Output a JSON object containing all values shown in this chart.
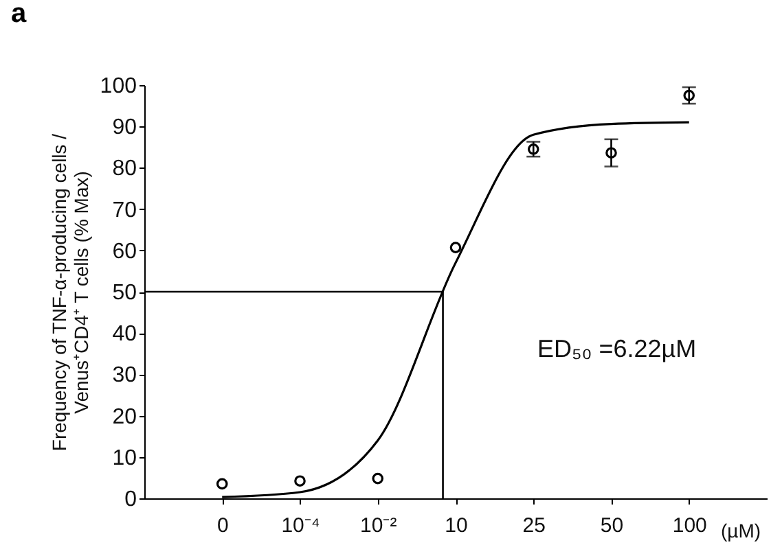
{
  "chart_data": {
    "type": "scatter",
    "title": "a",
    "xlabel": "(µM)",
    "ylabel": "Frequency of TNF-α-producing cells / Venus⁺CD4⁺ T cells (% Max)",
    "categories": [
      "0",
      "10⁻⁴",
      "10⁻²",
      "10",
      "25",
      "50",
      "100"
    ],
    "ylim": [
      0,
      100
    ],
    "yticks": [
      0,
      10,
      20,
      30,
      40,
      50,
      60,
      70,
      80,
      90,
      100
    ],
    "grid": false,
    "annotations": [
      "ED₅₀ =6.22µM"
    ],
    "ref_lines": [
      {
        "axis": "y",
        "value": 50,
        "color": "#000000",
        "line_style": "solid"
      }
    ],
    "series": [
      {
        "color": "#000000",
        "marker": "circle",
        "values": [
          3.5,
          4.2,
          4.8,
          60.7,
          84.5,
          83.6,
          97.5
        ],
        "errors": [
          null,
          null,
          null,
          null,
          1.8,
          3.3,
          2
        ]
      },
      {
        "type": "line",
        "color": "#000000",
        "marker": "none",
        "line_style": "solid",
        "values": [
          0.3,
          1.5,
          14,
          57,
          88,
          90.6,
          91
        ]
      }
    ]
  }
}
